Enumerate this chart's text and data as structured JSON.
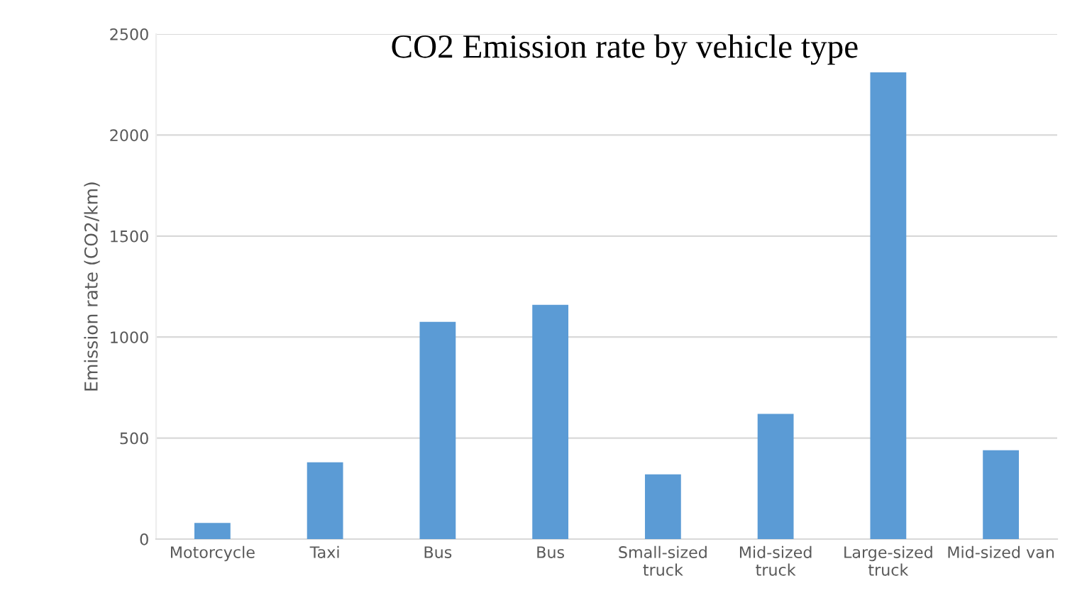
{
  "chart_data": {
    "type": "bar",
    "title": "CO2 Emission rate by vehicle type",
    "ylabel": "Emission rate (CO2/km)",
    "categories": [
      "Motorcycle",
      "Taxi",
      "Bus",
      "Bus",
      "Small-sized\ntruck",
      "Mid-sized\ntruck",
      "Large-sized\ntruck",
      "Mid-sized van"
    ],
    "values": [
      80,
      380,
      1075,
      1160,
      320,
      620,
      2310,
      440
    ],
    "color": "#5b9bd5",
    "ylim": [
      0,
      2500
    ],
    "yticks": [
      0,
      500,
      1000,
      1500,
      2000,
      2500
    ],
    "grid": "y"
  }
}
